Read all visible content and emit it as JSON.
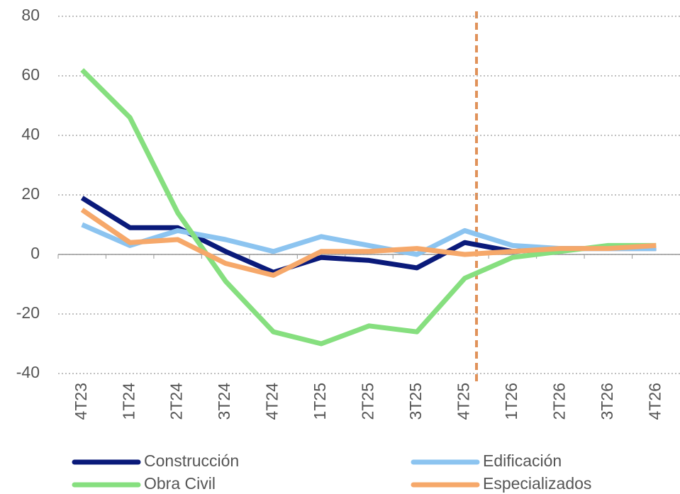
{
  "chart_data": {
    "type": "line",
    "categories": [
      "4T23",
      "1T24",
      "2T24",
      "3T24",
      "4T24",
      "1T25",
      "2T25",
      "3T25",
      "4T25",
      "1T26",
      "2T26",
      "3T26",
      "4T26"
    ],
    "series": [
      {
        "name": "Construcción",
        "color": "#0a1a7a",
        "values": [
          19,
          9,
          9,
          1,
          -6,
          -1,
          -2,
          -4.5,
          4,
          1,
          2,
          2,
          2
        ]
      },
      {
        "name": "Edificación",
        "color": "#8cc4f0",
        "values": [
          10,
          3,
          8,
          5,
          1,
          6,
          3,
          0,
          8,
          3,
          2,
          2,
          2
        ]
      },
      {
        "name": "Obra Civil",
        "color": "#86df7f",
        "values": [
          62,
          46,
          14,
          -9,
          -26,
          -30,
          -24,
          -26,
          -8,
          -1,
          1,
          3,
          3
        ]
      },
      {
        "name": "Especializados",
        "color": "#f6a86a",
        "values": [
          15,
          4,
          5,
          -3,
          -7,
          1,
          1,
          2,
          0,
          1,
          2,
          2,
          3
        ]
      }
    ],
    "ylim": [
      -40,
      80
    ],
    "yticks": [
      -40,
      -20,
      0,
      20,
      40,
      60,
      80
    ],
    "grid": true
  }
}
